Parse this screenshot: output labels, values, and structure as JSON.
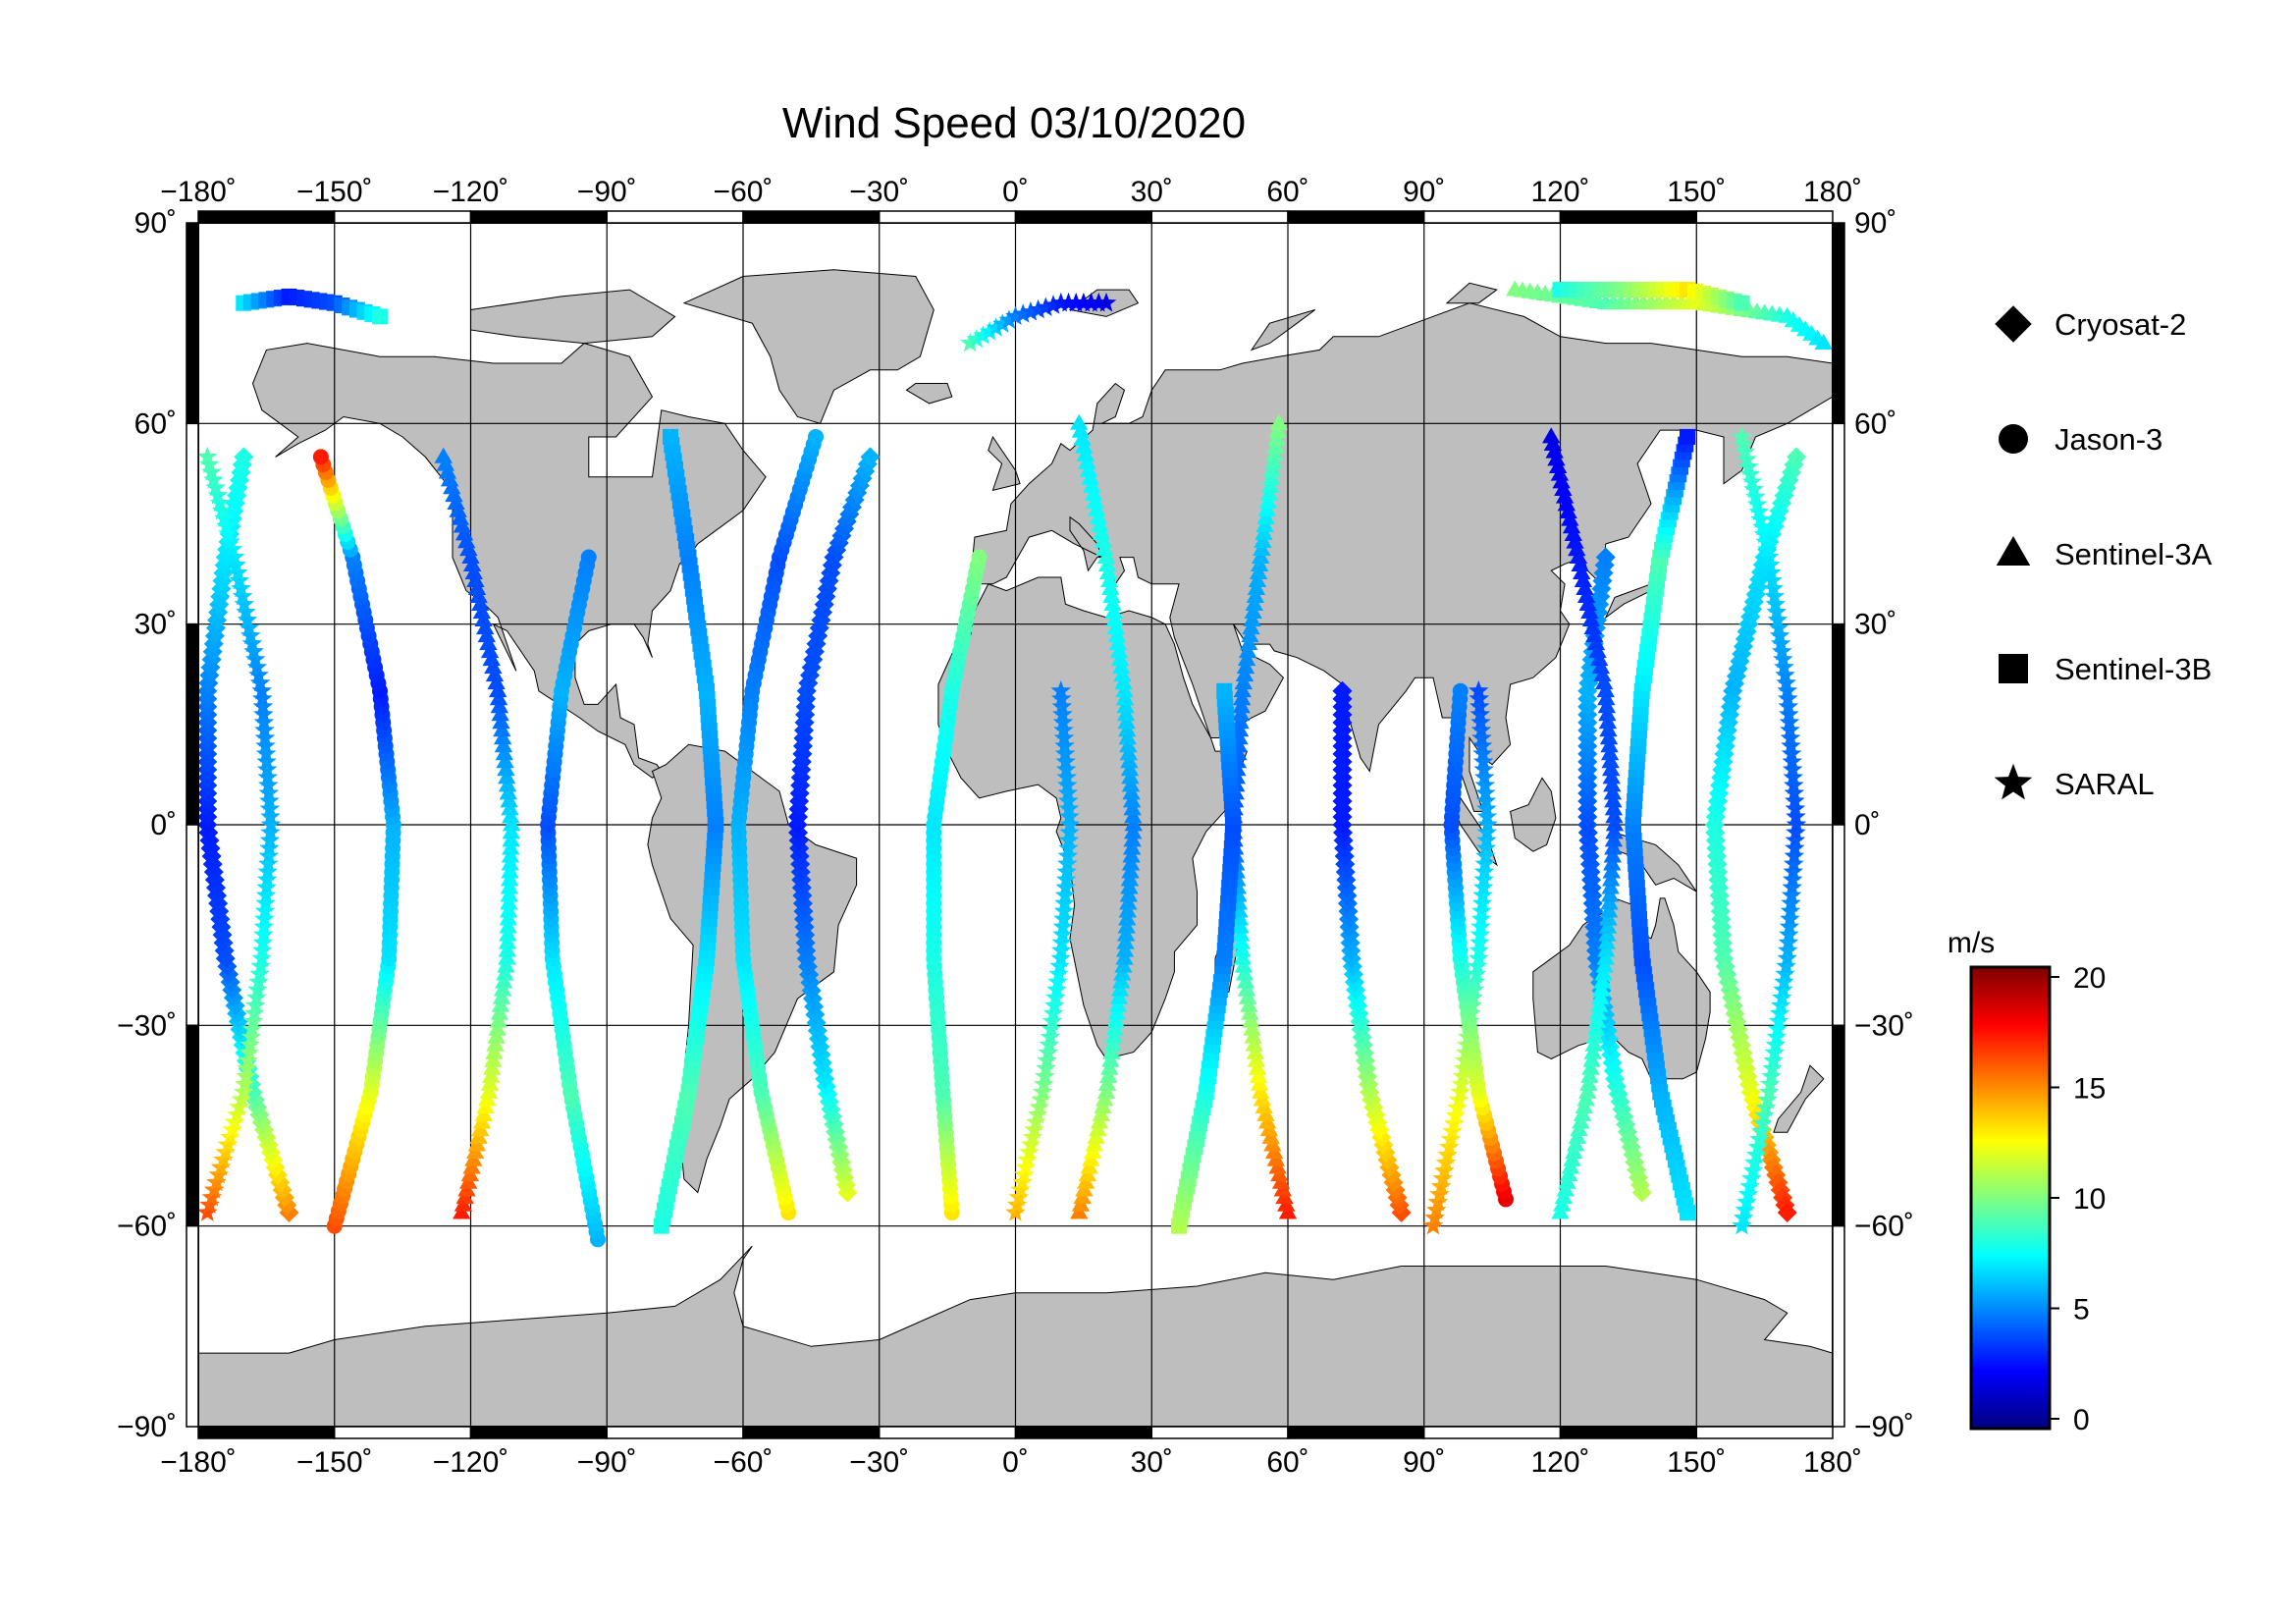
{
  "title": "Wind Speed 03/10/2020",
  "x_ticks": [
    {
      "value": -180,
      "label": "−180˚"
    },
    {
      "value": -150,
      "label": "−150˚"
    },
    {
      "value": -120,
      "label": "−120˚"
    },
    {
      "value": -90,
      "label": "−90˚"
    },
    {
      "value": -60,
      "label": "−60˚"
    },
    {
      "value": -30,
      "label": "−30˚"
    },
    {
      "value": 0,
      "label": "0˚"
    },
    {
      "value": 30,
      "label": "30˚"
    },
    {
      "value": 60,
      "label": "60˚"
    },
    {
      "value": 90,
      "label": "90˚"
    },
    {
      "value": 120,
      "label": "120˚"
    },
    {
      "value": 150,
      "label": "150˚"
    },
    {
      "value": 180,
      "label": "180˚"
    }
  ],
  "y_ticks": [
    {
      "value": 90,
      "label": "90˚"
    },
    {
      "value": 60,
      "label": "60˚"
    },
    {
      "value": 30,
      "label": "30˚"
    },
    {
      "value": 0,
      "label": "0˚"
    },
    {
      "value": -30,
      "label": "−30˚"
    },
    {
      "value": -60,
      "label": "−60˚"
    },
    {
      "value": -90,
      "label": "−90˚"
    }
  ],
  "legend": {
    "items": [
      {
        "label": "Cryosat-2",
        "symbol": "diamond"
      },
      {
        "label": "Jason-3",
        "symbol": "circle"
      },
      {
        "label": "Sentinel-3A",
        "symbol": "triangle"
      },
      {
        "label": "Sentinel-3B",
        "symbol": "square"
      },
      {
        "label": "SARAL",
        "symbol": "star"
      }
    ]
  },
  "colorbar": {
    "unit": "m/s",
    "min": 0,
    "max": 20,
    "ticks": [
      {
        "value": 20,
        "label": "20"
      },
      {
        "value": 15,
        "label": "15"
      },
      {
        "value": 10,
        "label": "10"
      },
      {
        "value": 5,
        "label": "5"
      },
      {
        "value": 0,
        "label": "0"
      }
    ],
    "colors": [
      "#00007f",
      "#0000ff",
      "#0080ff",
      "#00ffff",
      "#80ff80",
      "#ffff00",
      "#ff8000",
      "#ff0000",
      "#7f0000"
    ]
  },
  "map": {
    "projection": "equirectangular",
    "lon_range": [
      -180,
      180
    ],
    "lat_range": [
      -90,
      90
    ],
    "land_color": "#bebebe",
    "ocean_color": "#ffffff"
  },
  "chart_data": {
    "type": "scatter",
    "title": "Wind Speed 03/10/2020",
    "xlabel": "",
    "ylabel": "",
    "xlim": [
      -180,
      180
    ],
    "ylim": [
      -90,
      90
    ],
    "colorbar_range": [
      0,
      20
    ],
    "grid": true,
    "legend_position": "right",
    "series": [
      {
        "name": "Cryosat-2",
        "marker": "diamond",
        "ground_tracks": [
          {
            "points": [
              [
                -160,
                -58,
                15
              ],
              [
                -168,
                -40,
                9
              ],
              [
                -174,
                -20,
                4
              ],
              [
                -178,
                0,
                3
              ],
              [
                -178,
                20,
                5
              ],
              [
                -174,
                40,
                7
              ],
              [
                -170,
                55,
                8
              ]
            ]
          },
          {
            "points": [
              [
                -37,
                -55,
                12
              ],
              [
                -42,
                -38,
                7
              ],
              [
                -46,
                -20,
                5
              ],
              [
                -48,
                0,
                3
              ],
              [
                -46,
                20,
                4
              ],
              [
                -40,
                40,
                4
              ],
              [
                -32,
                55,
                6
              ]
            ]
          },
          {
            "points": [
              [
                85,
                -58,
                16
              ],
              [
                78,
                -40,
                11
              ],
              [
                74,
                -20,
                6
              ],
              [
                72,
                0,
                3
              ],
              [
                72,
                20,
                3
              ]
            ]
          },
          {
            "points": [
              [
                138,
                -55,
                11
              ],
              [
                132,
                -38,
                8
              ],
              [
                128,
                -20,
                5
              ],
              [
                126,
                0,
                4
              ],
              [
                126,
                20,
                6
              ],
              [
                130,
                40,
                5
              ]
            ]
          },
          {
            "points": [
              [
                172,
                55,
                9
              ],
              [
                165,
                40,
                7
              ],
              [
                158,
                20,
                6
              ],
              [
                154,
                0,
                8
              ],
              [
                156,
                -20,
                9
              ],
              [
                162,
                -40,
                12
              ],
              [
                170,
                -58,
                17
              ]
            ]
          }
        ]
      },
      {
        "name": "Jason-3",
        "marker": "circle",
        "ground_tracks": [
          {
            "points": [
              [
                -150,
                -60,
                16
              ],
              [
                -142,
                -40,
                12
              ],
              [
                -138,
                -20,
                7
              ],
              [
                -137,
                0,
                6
              ],
              [
                -140,
                20,
                3
              ],
              [
                -146,
                40,
                5
              ],
              [
                -153,
                55,
                17
              ]
            ]
          },
          {
            "points": [
              [
                -92,
                -62,
                6
              ],
              [
                -98,
                -40,
                9
              ],
              [
                -102,
                -20,
                7
              ],
              [
                -103,
                0,
                4
              ],
              [
                -100,
                20,
                6
              ],
              [
                -94,
                40,
                5
              ]
            ]
          },
          {
            "points": [
              [
                -50,
                -58,
                13
              ],
              [
                -56,
                -40,
                9
              ],
              [
                -60,
                -20,
                7
              ],
              [
                -61,
                0,
                6
              ],
              [
                -58,
                20,
                5
              ],
              [
                -52,
                40,
                4
              ],
              [
                -44,
                58,
                6
              ]
            ]
          },
          {
            "points": [
              [
                -14,
                -58,
                13
              ],
              [
                -16,
                -40,
                9
              ],
              [
                -18,
                -20,
                8
              ],
              [
                -18,
                0,
                7
              ],
              [
                -14,
                20,
                8
              ],
              [
                -8,
                40,
                10
              ]
            ]
          },
          {
            "points": [
              [
                108,
                -56,
                18
              ],
              [
                102,
                -40,
                12
              ],
              [
                98,
                -20,
                8
              ],
              [
                96,
                0,
                4
              ],
              [
                98,
                20,
                5
              ]
            ]
          }
        ]
      },
      {
        "name": "Sentinel-3A",
        "marker": "triangle",
        "ground_tracks": [
          {
            "points": [
              [
                -122,
                -58,
                17
              ],
              [
                -116,
                -40,
                12
              ],
              [
                -112,
                -20,
                8
              ],
              [
                -111,
                0,
                7
              ],
              [
                -114,
                20,
                4
              ],
              [
                -120,
                40,
                4
              ],
              [
                -126,
                55,
                5
              ]
            ]
          },
          {
            "points": [
              [
                14,
                -58,
                15
              ],
              [
                20,
                -40,
                10
              ],
              [
                24,
                -20,
                6
              ],
              [
                26,
                0,
                5
              ],
              [
                24,
                20,
                7
              ],
              [
                20,
                40,
                8
              ],
              [
                14,
                60,
                7
              ]
            ]
          },
          {
            "points": [
              [
                60,
                -58,
                17
              ],
              [
                54,
                -40,
                13
              ],
              [
                50,
                -20,
                8
              ],
              [
                48,
                0,
                4
              ],
              [
                50,
                20,
                5
              ],
              [
                54,
                40,
                6
              ],
              [
                58,
                60,
                10
              ]
            ]
          },
          {
            "points": [
              [
                120,
                -58,
                8
              ],
              [
                126,
                -40,
                9
              ],
              [
                130,
                -20,
                7
              ],
              [
                132,
                0,
                4
              ],
              [
                130,
                20,
                4
              ],
              [
                124,
                40,
                3
              ],
              [
                118,
                58,
                2
              ]
            ]
          },
          {
            "points": [
              [
                110,
                80,
                10
              ],
              [
                130,
                78,
                9
              ],
              [
                150,
                78,
                12
              ],
              [
                170,
                76,
                8
              ],
              [
                178,
                72,
                7
              ]
            ]
          }
        ]
      },
      {
        "name": "Sentinel-3B",
        "marker": "square",
        "ground_tracks": [
          {
            "points": [
              [
                -170,
                78,
                7
              ],
              [
                -160,
                79,
                3
              ],
              [
                -150,
                78,
                4
              ],
              [
                -140,
                76,
                8
              ]
            ]
          },
          {
            "points": [
              [
                -78,
                -60,
                8
              ],
              [
                -72,
                -40,
                9
              ],
              [
                -68,
                -20,
                7
              ],
              [
                -66,
                0,
                5
              ],
              [
                -68,
                20,
                6
              ],
              [
                -72,
                40,
                5
              ],
              [
                -76,
                58,
                6
              ]
            ]
          },
          {
            "points": [
              [
                36,
                -60,
                11
              ],
              [
                42,
                -40,
                8
              ],
              [
                46,
                -20,
                5
              ],
              [
                48,
                0,
                4
              ],
              [
                46,
                20,
                6
              ]
            ]
          },
          {
            "points": [
              [
                148,
                -58,
                7
              ],
              [
                142,
                -40,
                6
              ],
              [
                138,
                -20,
                4
              ],
              [
                136,
                0,
                5
              ],
              [
                138,
                20,
                7
              ],
              [
                142,
                40,
                9
              ],
              [
                148,
                58,
                3
              ]
            ]
          },
          {
            "points": [
              [
                120,
                80,
                8
              ],
              [
                134,
                80,
                10
              ],
              [
                148,
                80,
                13
              ],
              [
                160,
                78,
                9
              ]
            ]
          }
        ]
      },
      {
        "name": "SARAL",
        "marker": "star",
        "ground_tracks": [
          {
            "points": [
              [
                -178,
                -58,
                16
              ],
              [
                -170,
                -40,
                11
              ],
              [
                -166,
                -20,
                8
              ],
              [
                -164,
                0,
                6
              ],
              [
                -166,
                20,
                5
              ],
              [
                -172,
                40,
                7
              ],
              [
                -178,
                55,
                9
              ]
            ]
          },
          {
            "points": [
              [
                -10,
                72,
                9
              ],
              [
                0,
                76,
                5
              ],
              [
                10,
                78,
                3
              ],
              [
                20,
                78,
                2
              ]
            ]
          },
          {
            "points": [
              [
                0,
                -58,
                14
              ],
              [
                6,
                -40,
                10
              ],
              [
                10,
                -20,
                7
              ],
              [
                12,
                0,
                6
              ],
              [
                10,
                20,
                5
              ]
            ]
          },
          {
            "points": [
              [
                92,
                -60,
                15
              ],
              [
                98,
                -40,
                12
              ],
              [
                102,
                -20,
                8
              ],
              [
                104,
                0,
                6
              ],
              [
                102,
                20,
                4
              ]
            ]
          },
          {
            "points": [
              [
                160,
                -60,
                7
              ],
              [
                166,
                -40,
                9
              ],
              [
                170,
                -20,
                6
              ],
              [
                172,
                0,
                4
              ],
              [
                170,
                20,
                5
              ],
              [
                166,
                40,
                7
              ],
              [
                160,
                58,
                9
              ]
            ]
          }
        ]
      }
    ]
  }
}
